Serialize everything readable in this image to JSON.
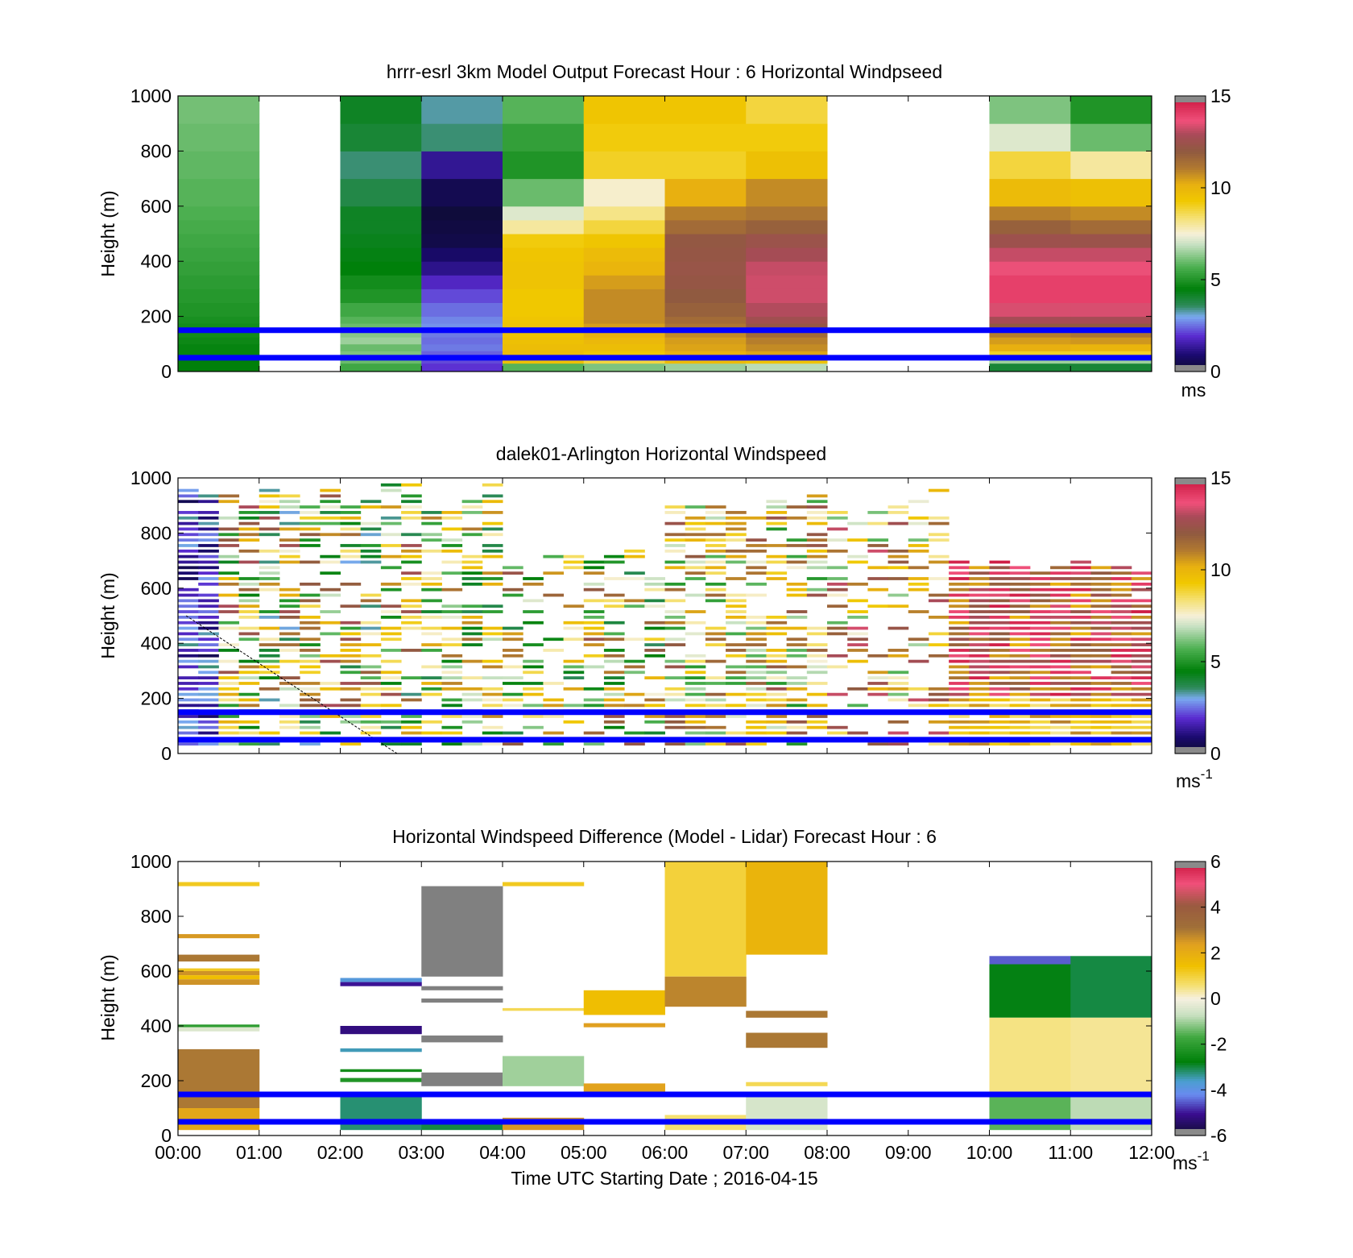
{
  "figure": {
    "xlabel": "Time UTC  Starting Date ; 2016-04-15",
    "xticks": [
      "00:00",
      "01:00",
      "02:00",
      "03:00",
      "04:00",
      "05:00",
      "06:00",
      "07:00",
      "08:00",
      "09:00",
      "10:00",
      "11:00",
      "12:00"
    ]
  },
  "chart_data": [
    {
      "type": "heatmap",
      "title": "hrrr-esrl 3km Model Output   Forecast Hour : 6 Horizontal Windpseed",
      "ylabel": "Height (m)",
      "ylim": [
        0,
        1000
      ],
      "yticks": [
        "0",
        "200",
        "400",
        "600",
        "800",
        "1000"
      ],
      "xlim": [
        0,
        12
      ],
      "colorbar": {
        "ticks": [
          "0",
          "5",
          "10",
          "15"
        ],
        "range": [
          0,
          15
        ],
        "unit": "ms"
      },
      "reference_lines_m": [
        150,
        50
      ],
      "heights_m": [
        0,
        30,
        50,
        75,
        100,
        125,
        150,
        175,
        200,
        250,
        300,
        350,
        400,
        450,
        500,
        550,
        600,
        700,
        800,
        900,
        1000
      ],
      "columns": [
        {
          "hour": 0,
          "windspeed": [
            4.5,
            4.5,
            4.6,
            4.6,
            4.7,
            4.8,
            4.8,
            4.9,
            5.0,
            5.1,
            5.2,
            5.3,
            5.4,
            5.5,
            5.6,
            5.7,
            5.8,
            5.9,
            6.0,
            6.1
          ]
        },
        {
          "hour": 1,
          "windspeed": [
            null,
            null,
            null,
            null,
            null,
            null,
            null,
            null,
            null,
            null,
            null,
            null,
            null,
            null,
            null,
            null,
            null,
            null,
            null,
            null
          ]
        },
        {
          "hour": 2,
          "windspeed": [
            5.5,
            6.0,
            6.2,
            6.0,
            6.5,
            6.3,
            6.0,
            5.8,
            5.5,
            5.0,
            4.8,
            4.5,
            4.4,
            4.3,
            4.2,
            4.2,
            3.8,
            3.5,
            4.0,
            4.2
          ]
        },
        {
          "hour": 3,
          "windspeed": [
            2.0,
            2.2,
            2.4,
            2.6,
            2.5,
            2.6,
            2.8,
            2.7,
            2.5,
            2.2,
            1.8,
            1.2,
            0.8,
            0.4,
            0.3,
            0.2,
            0.5,
            1.3,
            3.5,
            3.3
          ]
        },
        {
          "hour": 4,
          "windspeed": [
            5.8,
            9.6,
            9.8,
            9.7,
            9.6,
            9.5,
            9.5,
            9.4,
            9.3,
            9.3,
            9.5,
            9.5,
            9.4,
            9.2,
            8.0,
            7.2,
            6.0,
            5.0,
            5.3,
            5.8
          ]
        },
        {
          "hour": 5,
          "windspeed": [
            6.2,
            8.8,
            9.4,
            9.7,
            9.9,
            10.2,
            10.5,
            10.8,
            10.8,
            10.8,
            10.5,
            10.0,
            9.8,
            9.4,
            8.8,
            8.2,
            7.6,
            9.0,
            9.2,
            9.4
          ]
        },
        {
          "hour": 6,
          "windspeed": [
            6.5,
            9.8,
            10.2,
            10.4,
            10.5,
            10.8,
            11.2,
            11.5,
            11.8,
            12.0,
            12.2,
            12.3,
            12.2,
            12.1,
            11.5,
            11.0,
            10.2,
            9.0,
            9.2,
            9.4
          ]
        },
        {
          "hour": 7,
          "windspeed": [
            6.8,
            9.5,
            10.4,
            10.8,
            11.0,
            11.5,
            12.2,
            12.6,
            13.0,
            13.3,
            13.3,
            13.2,
            12.8,
            12.4,
            11.8,
            11.2,
            10.8,
            9.6,
            9.2,
            8.8
          ]
        },
        {
          "hour": 8,
          "windspeed": [
            null,
            null,
            null,
            null,
            null,
            null,
            null,
            null,
            null,
            null,
            null,
            null,
            null,
            null,
            null,
            null,
            null,
            null,
            null,
            null
          ]
        },
        {
          "hour": 9,
          "windspeed": [
            null,
            null,
            null,
            null,
            null,
            null,
            null,
            null,
            null,
            null,
            null,
            null,
            null,
            null,
            null,
            null,
            null,
            null,
            null,
            null
          ]
        },
        {
          "hour": 10,
          "windspeed": [
            4.0,
            6.5,
            9.0,
            10.2,
            10.5,
            11.0,
            12.0,
            12.8,
            13.4,
            14.0,
            14.0,
            13.6,
            13.2,
            12.5,
            11.8,
            11.0,
            9.8,
            8.8,
            7.2,
            6.2
          ]
        },
        {
          "hour": 11,
          "windspeed": [
            4.0,
            6.5,
            9.0,
            10.0,
            10.6,
            11.2,
            12.0,
            12.8,
            13.4,
            14.0,
            14.0,
            13.6,
            13.2,
            12.4,
            11.5,
            10.8,
            9.6,
            8.0,
            6.0,
            5.0
          ]
        }
      ]
    },
    {
      "type": "heatmap",
      "title": "dalek01-Arlington  Horizontal Windspeed",
      "ylabel": "Height (m)",
      "ylim": [
        0,
        1000
      ],
      "yticks": [
        "0",
        "200",
        "400",
        "600",
        "800",
        "1000"
      ],
      "xlim": [
        0,
        12
      ],
      "colorbar": {
        "ticks": [
          "0",
          "5",
          "10",
          "15"
        ],
        "range": [
          0,
          15
        ],
        "unit": "ms",
        "unit_exponent": "-1"
      },
      "reference_lines_m": [
        150,
        50
      ],
      "time_step_h": 0.25,
      "height_step_m": 20,
      "regimes": [
        {
          "from_h": 0.0,
          "to_h": 0.3,
          "windspeed_range": [
            0.5,
            3.5
          ],
          "top_m": 980,
          "coverage": 0.9
        },
        {
          "from_h": 0.3,
          "to_h": 1.0,
          "windspeed_range": [
            4.0,
            13.0
          ],
          "top_m": 990,
          "coverage": 0.75
        },
        {
          "from_h": 1.0,
          "to_h": 3.0,
          "windspeed_range": [
            3.0,
            13.0
          ],
          "top_m": 990,
          "coverage": 0.65
        },
        {
          "from_h": 3.0,
          "to_h": 4.0,
          "windspeed_range": [
            3.5,
            11.5
          ],
          "top_m": 990,
          "coverage": 0.6
        },
        {
          "from_h": 4.0,
          "to_h": 6.0,
          "windspeed_range": [
            3.5,
            12.5
          ],
          "top_m": 760,
          "coverage": 0.45
        },
        {
          "from_h": 6.0,
          "to_h": 8.0,
          "windspeed_range": [
            5.0,
            12.5
          ],
          "top_m": 990,
          "coverage": 0.7
        },
        {
          "from_h": 8.0,
          "to_h": 9.5,
          "windspeed_range": [
            5.0,
            13.5
          ],
          "top_m": 990,
          "coverage": 0.45
        },
        {
          "from_h": 9.5,
          "to_h": 12.0,
          "windspeed_range": [
            10.0,
            14.8
          ],
          "top_m": 700,
          "coverage": 0.98
        }
      ]
    },
    {
      "type": "heatmap",
      "title": "Horizontal Windspeed Difference (Model - Lidar) Forecast Hour : 6",
      "ylabel": "Height (m)",
      "ylim": [
        0,
        1000
      ],
      "yticks": [
        "0",
        "200",
        "400",
        "600",
        "800",
        "1000"
      ],
      "xlim": [
        0,
        12
      ],
      "colorbar": {
        "ticks": [
          "-6",
          "-4",
          "-2",
          "0",
          "2",
          "4",
          "6"
        ],
        "range": [
          -6,
          6
        ],
        "unit": "ms",
        "unit_exponent": "-1"
      },
      "reference_lines_m": [
        150,
        50
      ],
      "bands": [
        {
          "hour": 0,
          "from_m": 910,
          "to_m": 925,
          "diff": 1.2
        },
        {
          "hour": 0,
          "from_m": 720,
          "to_m": 735,
          "diff": 2.5
        },
        {
          "hour": 0,
          "from_m": 635,
          "to_m": 660,
          "diff": 3.0
        },
        {
          "hour": 0,
          "from_m": 600,
          "to_m": 610,
          "diff": 1.2
        },
        {
          "hour": 0,
          "from_m": 585,
          "to_m": 600,
          "diff": 2.6
        },
        {
          "hour": 0,
          "from_m": 570,
          "to_m": 585,
          "diff": 1.5
        },
        {
          "hour": 0,
          "from_m": 550,
          "to_m": 570,
          "diff": 2.6
        },
        {
          "hour": 0,
          "from_m": 395,
          "to_m": 405,
          "diff": -2.0
        },
        {
          "hour": 0,
          "from_m": 380,
          "to_m": 395,
          "diff": -0.4
        },
        {
          "hour": 0,
          "from_m": 100,
          "to_m": 315,
          "diff": 3.0
        },
        {
          "hour": 0,
          "from_m": 20,
          "to_m": 100,
          "diff": 2.2
        },
        {
          "hour": 2,
          "from_m": 560,
          "to_m": 575,
          "diff": -3.8
        },
        {
          "hour": 2,
          "from_m": 545,
          "to_m": 560,
          "diff": -5.0
        },
        {
          "hour": 2,
          "from_m": 370,
          "to_m": 400,
          "diff": -5.2
        },
        {
          "hour": 2,
          "from_m": 305,
          "to_m": 318,
          "diff": -3.5
        },
        {
          "hour": 2,
          "from_m": 232,
          "to_m": 242,
          "diff": -2.4
        },
        {
          "hour": 2,
          "from_m": 195,
          "to_m": 210,
          "diff": -2.2
        },
        {
          "hour": 2,
          "from_m": 20,
          "to_m": 140,
          "diff": -3.2
        },
        {
          "hour": 3,
          "from_m": 580,
          "to_m": 910,
          "diff": 7.0
        },
        {
          "hour": 3,
          "from_m": 530,
          "to_m": 545,
          "diff": 7.0
        },
        {
          "hour": 3,
          "from_m": 485,
          "to_m": 500,
          "diff": 7.0
        },
        {
          "hour": 3,
          "from_m": 340,
          "to_m": 365,
          "diff": 7.0
        },
        {
          "hour": 3,
          "from_m": 180,
          "to_m": 230,
          "diff": 7.0
        },
        {
          "hour": 3,
          "from_m": 20,
          "to_m": 60,
          "diff": -3.0
        },
        {
          "hour": 4,
          "from_m": 910,
          "to_m": 925,
          "diff": 1.2
        },
        {
          "hour": 4,
          "from_m": 455,
          "to_m": 465,
          "diff": 0.8
        },
        {
          "hour": 4,
          "from_m": 180,
          "to_m": 290,
          "diff": -1.0
        },
        {
          "hour": 4,
          "from_m": 20,
          "to_m": 65,
          "diff": 2.5
        },
        {
          "hour": 5,
          "from_m": 440,
          "to_m": 530,
          "diff": 1.5
        },
        {
          "hour": 5,
          "from_m": 395,
          "to_m": 410,
          "diff": 2.4
        },
        {
          "hour": 5,
          "from_m": 140,
          "to_m": 190,
          "diff": 2.3
        },
        {
          "hour": 6,
          "from_m": 580,
          "to_m": 1000,
          "diff": 1.0
        },
        {
          "hour": 6,
          "from_m": 470,
          "to_m": 580,
          "diff": 2.8
        },
        {
          "hour": 6,
          "from_m": 20,
          "to_m": 75,
          "diff": 0.6
        },
        {
          "hour": 7,
          "from_m": 660,
          "to_m": 1000,
          "diff": 1.8
        },
        {
          "hour": 7,
          "from_m": 430,
          "to_m": 455,
          "diff": 3.0
        },
        {
          "hour": 7,
          "from_m": 320,
          "to_m": 375,
          "diff": 3.0
        },
        {
          "hour": 7,
          "from_m": 180,
          "to_m": 195,
          "diff": 0.8
        },
        {
          "hour": 7,
          "from_m": 20,
          "to_m": 150,
          "diff": -0.5
        },
        {
          "hour": 10,
          "from_m": 625,
          "to_m": 655,
          "diff": -4.5
        },
        {
          "hour": 10,
          "from_m": 430,
          "to_m": 625,
          "diff": -2.8
        },
        {
          "hour": 10,
          "from_m": 160,
          "to_m": 430,
          "diff": 0.5
        },
        {
          "hour": 10,
          "from_m": 20,
          "to_m": 160,
          "diff": -1.5
        },
        {
          "hour": 11,
          "from_m": 430,
          "to_m": 655,
          "diff": -3.0
        },
        {
          "hour": 11,
          "from_m": 160,
          "to_m": 430,
          "diff": 0.4
        },
        {
          "hour": 11,
          "from_m": 20,
          "to_m": 160,
          "diff": -0.8
        }
      ]
    }
  ]
}
